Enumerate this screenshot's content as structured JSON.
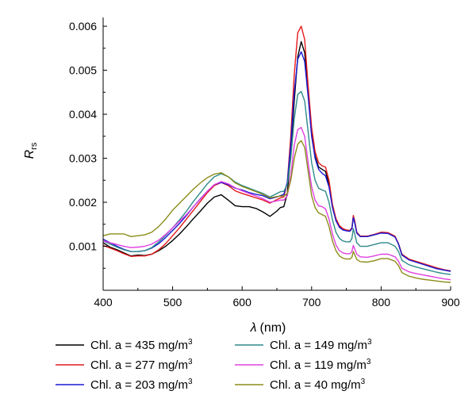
{
  "chart_data": {
    "type": "line",
    "xlabel_symbol": "λ",
    "xlabel_unit": "(nm)",
    "ylabel_main": "R",
    "ylabel_sub": "rs",
    "xlim": [
      400,
      900
    ],
    "ylim": [
      0.0,
      0.0062
    ],
    "xticks": [
      400,
      500,
      600,
      700,
      800,
      900
    ],
    "yticks": [
      0.001,
      0.002,
      0.003,
      0.004,
      0.005,
      0.006
    ],
    "ytick_labels": [
      "0.001",
      "0.002",
      "0.003",
      "0.004",
      "0.005",
      "0.006"
    ],
    "grid": false,
    "legend": "bottom, two columns",
    "x": [
      400,
      410,
      420,
      430,
      440,
      450,
      460,
      470,
      480,
      490,
      500,
      510,
      520,
      530,
      540,
      550,
      560,
      570,
      580,
      590,
      600,
      610,
      620,
      630,
      640,
      650,
      655,
      660,
      665,
      670,
      675,
      680,
      685,
      690,
      695,
      700,
      705,
      710,
      715,
      720,
      725,
      730,
      735,
      740,
      745,
      750,
      755,
      758,
      760,
      762,
      765,
      770,
      780,
      790,
      800,
      810,
      820,
      825,
      830,
      840,
      850,
      860,
      870,
      880,
      890,
      900
    ],
    "series": [
      {
        "name": "Chl. a = 435 mg/m",
        "color": "#000000",
        "values": [
          0.00108,
          0.00098,
          0.00092,
          0.00085,
          0.00078,
          0.0008,
          0.00079,
          0.00082,
          0.0009,
          0.001,
          0.00113,
          0.00128,
          0.00145,
          0.00163,
          0.0018,
          0.00198,
          0.00212,
          0.00217,
          0.00205,
          0.00192,
          0.0019,
          0.0019,
          0.00186,
          0.00178,
          0.00168,
          0.0018,
          0.00188,
          0.0019,
          0.0022,
          0.0031,
          0.0043,
          0.0053,
          0.00565,
          0.0054,
          0.0045,
          0.00355,
          0.00305,
          0.0028,
          0.00275,
          0.0027,
          0.0024,
          0.0019,
          0.0016,
          0.00145,
          0.00138,
          0.00136,
          0.00135,
          0.0014,
          0.00168,
          0.00155,
          0.0013,
          0.00122,
          0.00122,
          0.00126,
          0.00131,
          0.0013,
          0.00122,
          0.00105,
          0.0008,
          0.0007,
          0.00065,
          0.0006,
          0.00055,
          0.0005,
          0.00046,
          0.00044
        ]
      },
      {
        "name": "Chl. a = 277 mg/m",
        "color": "#e41a1c",
        "values": [
          0.00102,
          0.00096,
          0.0009,
          0.00083,
          0.00077,
          0.00078,
          0.00078,
          0.00082,
          0.00092,
          0.00106,
          0.00124,
          0.00142,
          0.00162,
          0.00182,
          0.00202,
          0.00222,
          0.00238,
          0.00245,
          0.00238,
          0.00226,
          0.0022,
          0.00215,
          0.0021,
          0.00205,
          0.00198,
          0.00206,
          0.0021,
          0.00212,
          0.00245,
          0.0035,
          0.0049,
          0.00585,
          0.006,
          0.0057,
          0.00465,
          0.0037,
          0.00315,
          0.0029,
          0.00283,
          0.0028,
          0.0025,
          0.00195,
          0.00163,
          0.00147,
          0.0014,
          0.00137,
          0.00136,
          0.00142,
          0.0017,
          0.00158,
          0.00132,
          0.00123,
          0.00123,
          0.00127,
          0.00132,
          0.00131,
          0.00123,
          0.00106,
          0.00082,
          0.00071,
          0.00066,
          0.00061,
          0.00056,
          0.00051,
          0.00047,
          0.00044
        ]
      },
      {
        "name": "Chl. a = 203 mg/m",
        "color": "#1a1ad4",
        "values": [
          0.00116,
          0.00108,
          0.001,
          0.00093,
          0.00088,
          0.00088,
          0.0009,
          0.00096,
          0.00106,
          0.0012,
          0.00136,
          0.00152,
          0.0017,
          0.0019,
          0.00208,
          0.00225,
          0.0024,
          0.00245,
          0.0024,
          0.00232,
          0.00228,
          0.00222,
          0.00218,
          0.00215,
          0.00208,
          0.00212,
          0.00215,
          0.00218,
          0.00245,
          0.0033,
          0.0045,
          0.00525,
          0.00542,
          0.0052,
          0.0044,
          0.0035,
          0.003,
          0.00275,
          0.00266,
          0.0026,
          0.00235,
          0.00188,
          0.00158,
          0.00143,
          0.00137,
          0.00135,
          0.00134,
          0.0014,
          0.00165,
          0.00153,
          0.0013,
          0.00122,
          0.00122,
          0.00126,
          0.0013,
          0.00129,
          0.00121,
          0.00105,
          0.0008,
          0.00069,
          0.00064,
          0.00059,
          0.00054,
          0.00049,
          0.00046,
          0.00043
        ]
      },
      {
        "name": "Chl. a = 149 mg/m",
        "color": "#2e8a8a",
        "values": [
          0.00112,
          0.00105,
          0.00098,
          0.00092,
          0.00088,
          0.00088,
          0.0009,
          0.00097,
          0.0011,
          0.00125,
          0.00142,
          0.0016,
          0.0018,
          0.00202,
          0.00222,
          0.00242,
          0.00258,
          0.00265,
          0.00258,
          0.00246,
          0.00238,
          0.00232,
          0.00226,
          0.0022,
          0.00212,
          0.0022,
          0.00224,
          0.00225,
          0.0024,
          0.003,
          0.0039,
          0.00445,
          0.00452,
          0.0043,
          0.0036,
          0.0029,
          0.0025,
          0.00232,
          0.00228,
          0.00225,
          0.002,
          0.0016,
          0.00132,
          0.00118,
          0.00112,
          0.0011,
          0.0011,
          0.00118,
          0.0014,
          0.00128,
          0.00108,
          0.001,
          0.001,
          0.00104,
          0.00108,
          0.00108,
          0.001,
          0.00088,
          0.00068,
          0.00058,
          0.00053,
          0.00049,
          0.00045,
          0.00041,
          0.00038,
          0.00036
        ]
      },
      {
        "name": "Chl. a = 119 mg/m",
        "color": "#e040e0",
        "values": [
          0.00112,
          0.00108,
          0.00104,
          0.001,
          0.00097,
          0.00098,
          0.001,
          0.00105,
          0.00114,
          0.00127,
          0.00142,
          0.00157,
          0.00172,
          0.0019,
          0.00207,
          0.00225,
          0.0024,
          0.00247,
          0.00242,
          0.00233,
          0.00226,
          0.0022,
          0.00214,
          0.00208,
          0.002,
          0.00203,
          0.00205,
          0.00205,
          0.00215,
          0.0026,
          0.0033,
          0.00365,
          0.0037,
          0.0035,
          0.0029,
          0.00235,
          0.00205,
          0.00192,
          0.0019,
          0.00185,
          0.00162,
          0.00128,
          0.00103,
          0.0009,
          0.00085,
          0.00083,
          0.00083,
          0.00088,
          0.00102,
          0.00094,
          0.00082,
          0.00076,
          0.00075,
          0.00078,
          0.00082,
          0.00082,
          0.00076,
          0.00066,
          0.0005,
          0.00042,
          0.00038,
          0.00035,
          0.00032,
          0.00029,
          0.00026,
          0.00024
        ]
      },
      {
        "name": "Chl. a = 40 mg/m",
        "color": "#8c8c1a",
        "values": [
          0.00124,
          0.00128,
          0.00128,
          0.00128,
          0.00122,
          0.00124,
          0.00126,
          0.00132,
          0.00145,
          0.00162,
          0.00182,
          0.00198,
          0.00214,
          0.0023,
          0.00244,
          0.00256,
          0.00264,
          0.00267,
          0.00258,
          0.00244,
          0.00236,
          0.0023,
          0.00224,
          0.00218,
          0.0021,
          0.00213,
          0.00214,
          0.00214,
          0.0022,
          0.0025,
          0.003,
          0.00332,
          0.0034,
          0.00325,
          0.0027,
          0.00215,
          0.00188,
          0.00176,
          0.00172,
          0.00168,
          0.00145,
          0.00112,
          0.0009,
          0.00078,
          0.00073,
          0.00071,
          0.00071,
          0.00075,
          0.00088,
          0.00081,
          0.0007,
          0.00065,
          0.00064,
          0.00067,
          0.00072,
          0.00072,
          0.00066,
          0.00056,
          0.0004,
          0.00032,
          0.00028,
          0.00025,
          0.00023,
          0.00021,
          0.00019,
          0.00018
        ]
      }
    ],
    "legend_unit_sup": "3"
  }
}
